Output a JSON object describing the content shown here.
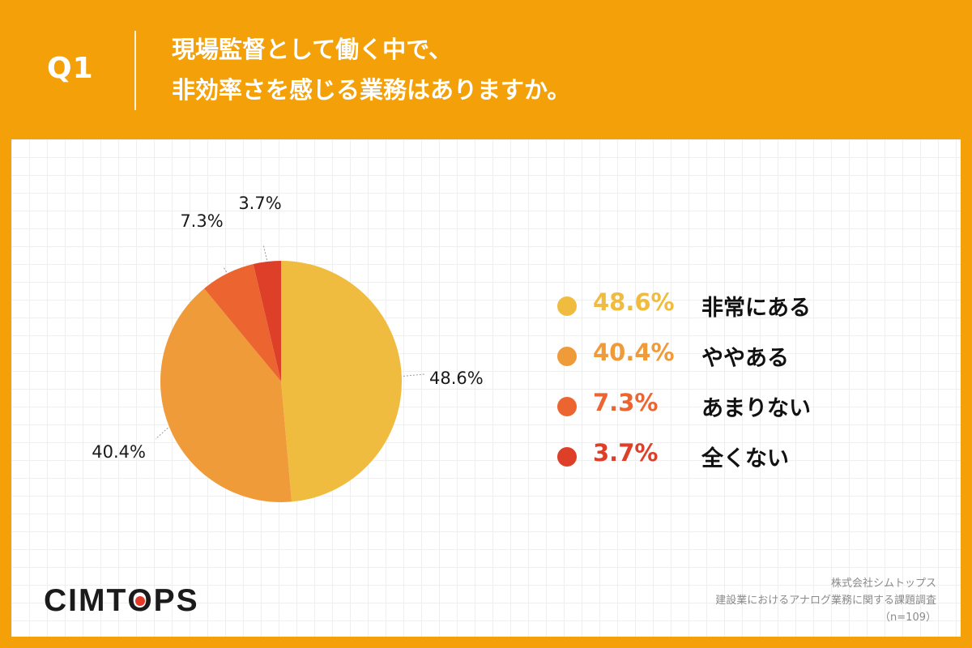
{
  "header": {
    "question": "Q1",
    "title_line1": "現場監督として働く中で、",
    "title_line2": "非効率さを感じる業務はありますか。"
  },
  "chart_data": {
    "type": "pie",
    "categories": [
      "非常にある",
      "ややある",
      "あまりない",
      "全くない"
    ],
    "values": [
      48.6,
      40.4,
      7.3,
      3.7
    ],
    "labels": [
      "48.6%",
      "40.4%",
      "7.3%",
      "3.7%"
    ],
    "colors": [
      "#efbc3f",
      "#f09b3a",
      "#ec6530",
      "#dd3f28"
    ],
    "start": "12 o'clock",
    "direction": "clockwise",
    "legend_position": "right"
  },
  "legend": [
    {
      "value": "48.6%",
      "label": "非常にある",
      "color": "#efbc3f"
    },
    {
      "value": "40.4%",
      "label": "ややある",
      "color": "#f09b3a"
    },
    {
      "value": "7.3%",
      "label": "あまりない",
      "color": "#ec6530"
    },
    {
      "value": "3.7%",
      "label": "全くない",
      "color": "#dd3f28"
    }
  ],
  "footer": {
    "logo_left": "CIMT",
    "logo_o": "O",
    "logo_right": "PS",
    "company": "株式会社シムトップス",
    "survey": "建設業におけるアナログ業務に関する課題調査",
    "sample": "（n=109）"
  }
}
